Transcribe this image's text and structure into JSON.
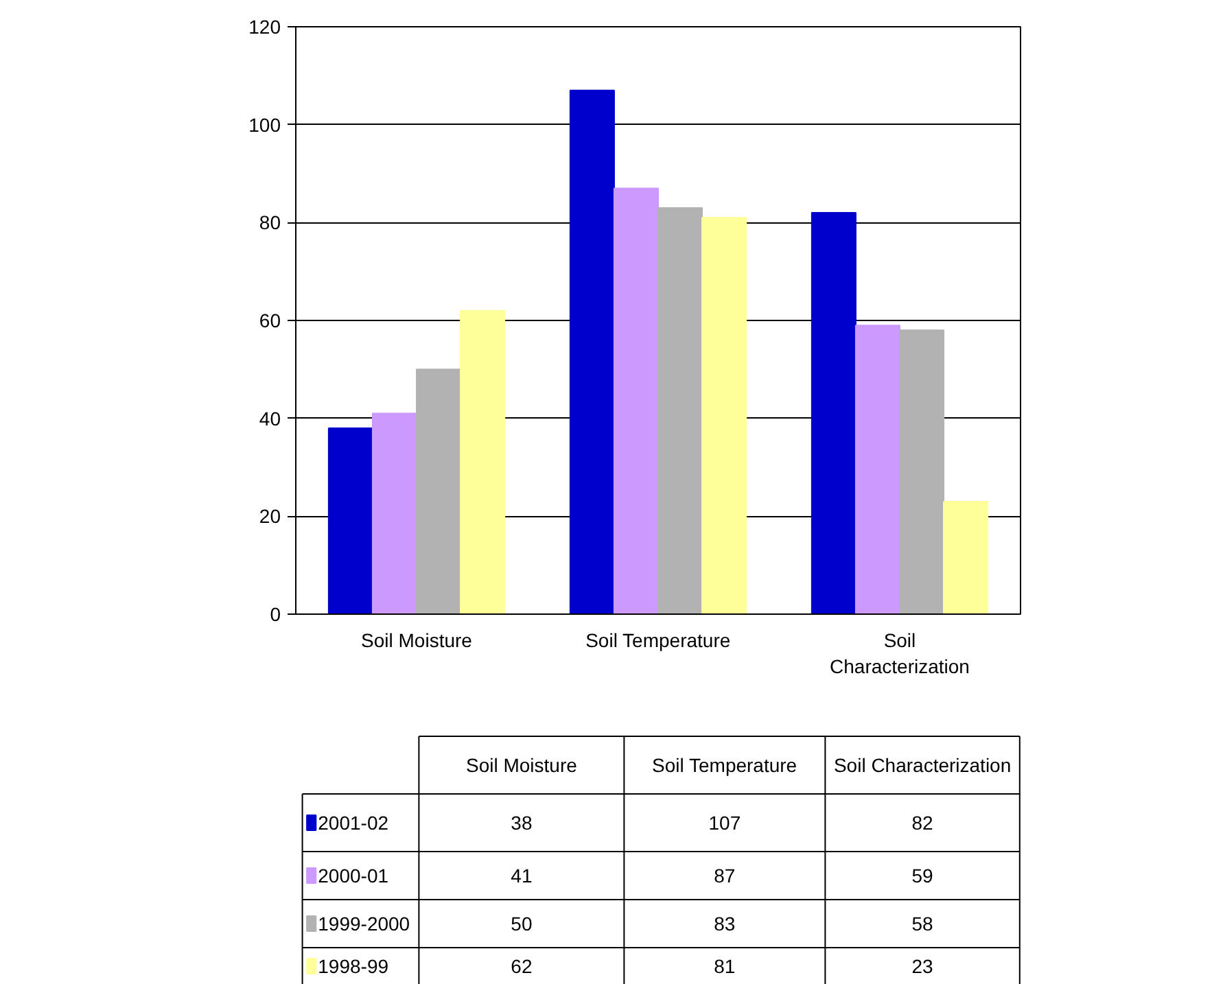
{
  "chart_data": {
    "type": "bar",
    "categories": [
      "Soil Moisture",
      "Soil Temperature",
      "Soil Characterization"
    ],
    "series": [
      {
        "name": "2001-02",
        "color": "#0000cc",
        "values": [
          38,
          107,
          82
        ]
      },
      {
        "name": "2000-01",
        "color": "#cc99ff",
        "values": [
          41,
          87,
          59
        ]
      },
      {
        "name": "1999-2000",
        "color": "#b2b2b2",
        "values": [
          50,
          83,
          58
        ]
      },
      {
        "name": "1998-99",
        "color": "#ffff99",
        "values": [
          62,
          81,
          23
        ]
      }
    ],
    "ylim": [
      0,
      120
    ],
    "yticks": [
      0,
      20,
      40,
      60,
      80,
      100,
      120
    ],
    "grid": "y",
    "legend": "bottom",
    "data_labels": true
  }
}
